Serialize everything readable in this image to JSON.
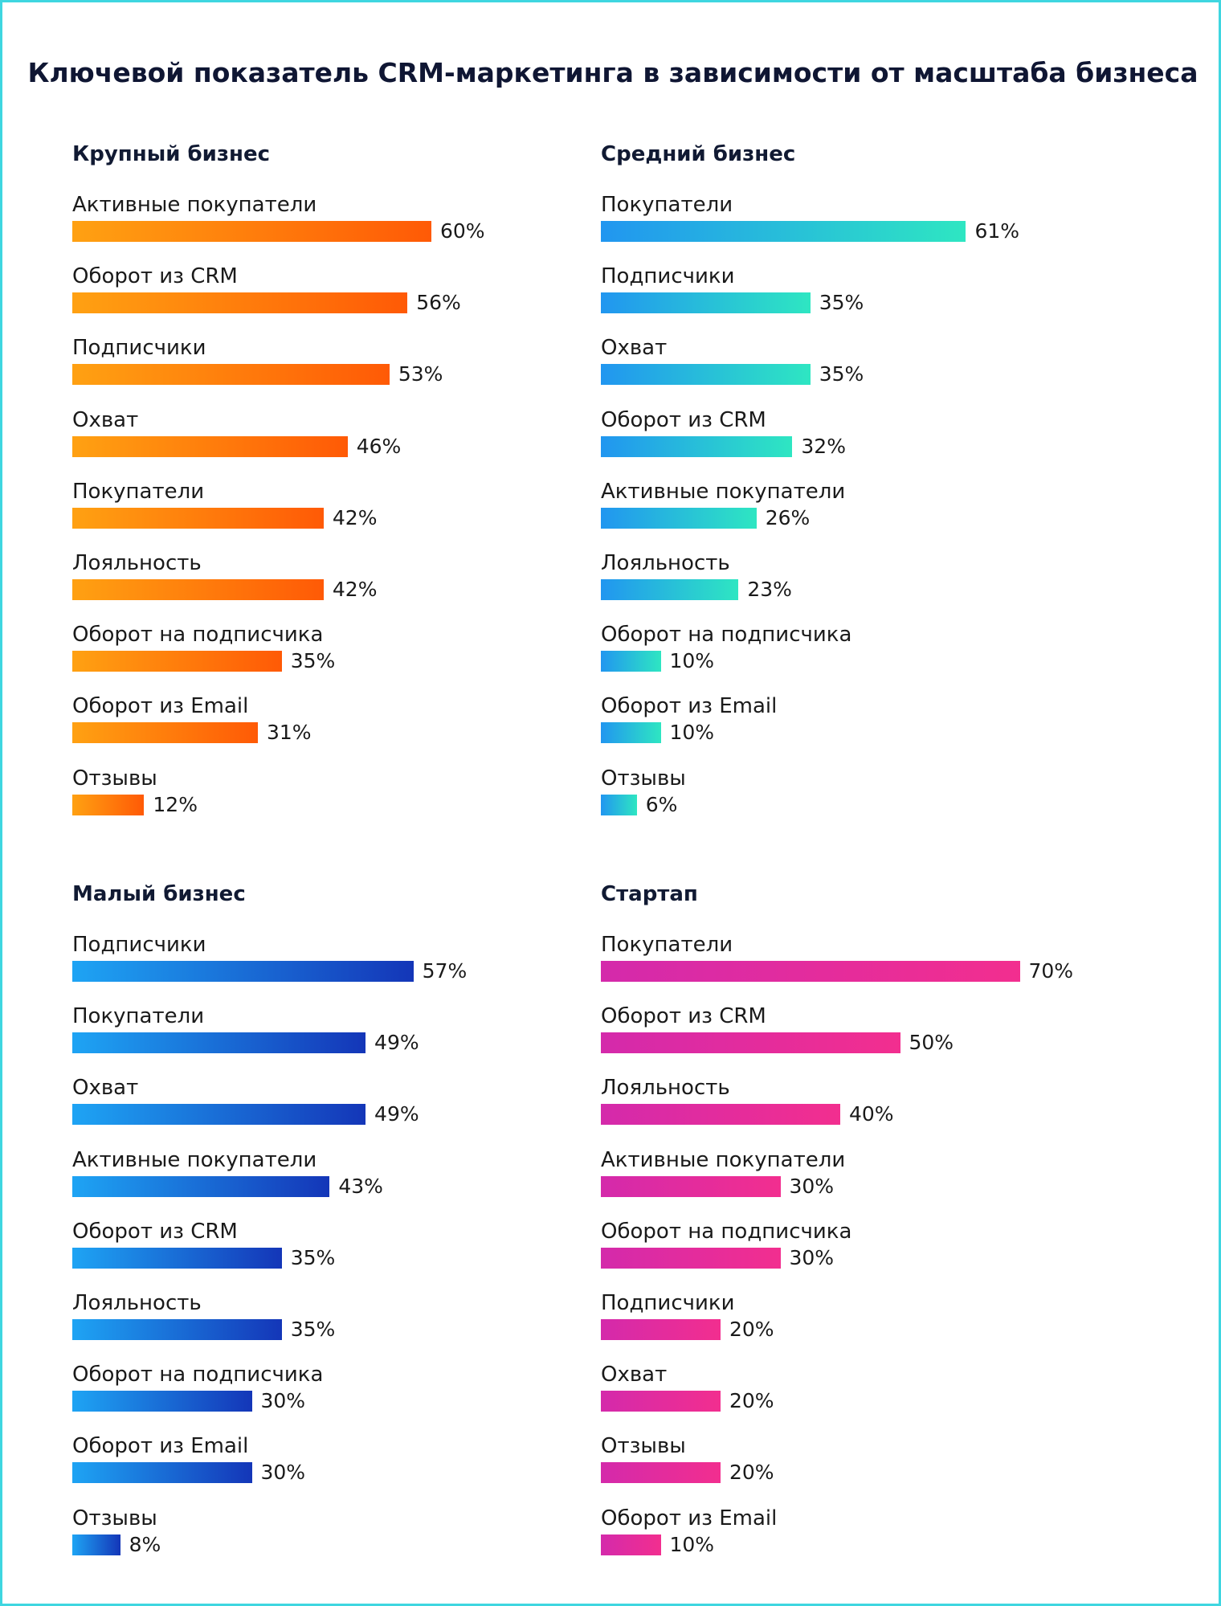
{
  "title": "Ключевой показатель CRM-маркетинга в зависимости от масштаба бизнеса",
  "chart_data": [
    {
      "type": "bar",
      "orientation": "horizontal",
      "title": "Крупный бизнес",
      "categories": [
        "Активные покупатели",
        "Оборот из CRM",
        "Подписчики",
        "Охват",
        "Покупатели",
        "Лояльность",
        "Оборот на подписчика",
        "Оборот из Email",
        "Отзывы"
      ],
      "values": [
        60,
        56,
        53,
        46,
        42,
        42,
        35,
        31,
        12
      ],
      "value_labels": [
        "60%",
        "56%",
        "53%",
        "46%",
        "42%",
        "42%",
        "35%",
        "31%",
        "12%"
      ],
      "unit": "%",
      "gradient": [
        "#ffa112",
        "#ff5a06"
      ],
      "xlim": [
        0,
        100
      ]
    },
    {
      "type": "bar",
      "orientation": "horizontal",
      "title": "Средний бизнес",
      "categories": [
        "Покупатели",
        "Подписчики",
        "Охват",
        "Оборот из CRM",
        "Активные покупатели",
        "Лояльность",
        "Оборот на подписчика",
        "Оборот из Email",
        "Отзывы"
      ],
      "values": [
        61,
        35,
        35,
        32,
        26,
        23,
        10,
        10,
        6
      ],
      "value_labels": [
        "61%",
        "35%",
        "35%",
        "32%",
        "26%",
        "23%",
        "10%",
        "10%",
        "6%"
      ],
      "unit": "%",
      "gradient": [
        "#2196f0",
        "#2ee6c2"
      ],
      "xlim": [
        0,
        100
      ]
    },
    {
      "type": "bar",
      "orientation": "horizontal",
      "title": "Малый бизнес",
      "categories": [
        "Подписчики",
        "Покупатели",
        "Охват",
        "Активные покупатели",
        "Оборот из CRM",
        "Лояльность",
        "Оборот на подписчика",
        "Оборот из Email",
        "Отзывы"
      ],
      "values": [
        57,
        49,
        49,
        43,
        35,
        35,
        30,
        30,
        8
      ],
      "value_labels": [
        "57%",
        "49%",
        "49%",
        "43%",
        "35%",
        "35%",
        "30%",
        "30%",
        "8%"
      ],
      "unit": "%",
      "gradient": [
        "#1ea4f4",
        "#1436b8"
      ],
      "xlim": [
        0,
        100
      ]
    },
    {
      "type": "bar",
      "orientation": "horizontal",
      "title": "Стартап",
      "categories": [
        "Покупатели",
        "Оборот из CRM",
        "Лояльность",
        "Активные покупатели",
        "Оборот на подписчика",
        "Подписчики",
        "Охват",
        "Отзывы",
        "Оборот из Email"
      ],
      "values": [
        70,
        50,
        40,
        30,
        30,
        20,
        20,
        20,
        10
      ],
      "value_labels": [
        "70%",
        "50%",
        "40%",
        "30%",
        "30%",
        "20%",
        "20%",
        "20%",
        "10%"
      ],
      "unit": "%",
      "gradient": [
        "#d42aab",
        "#f22e8f"
      ],
      "xlim": [
        0,
        100
      ]
    }
  ]
}
